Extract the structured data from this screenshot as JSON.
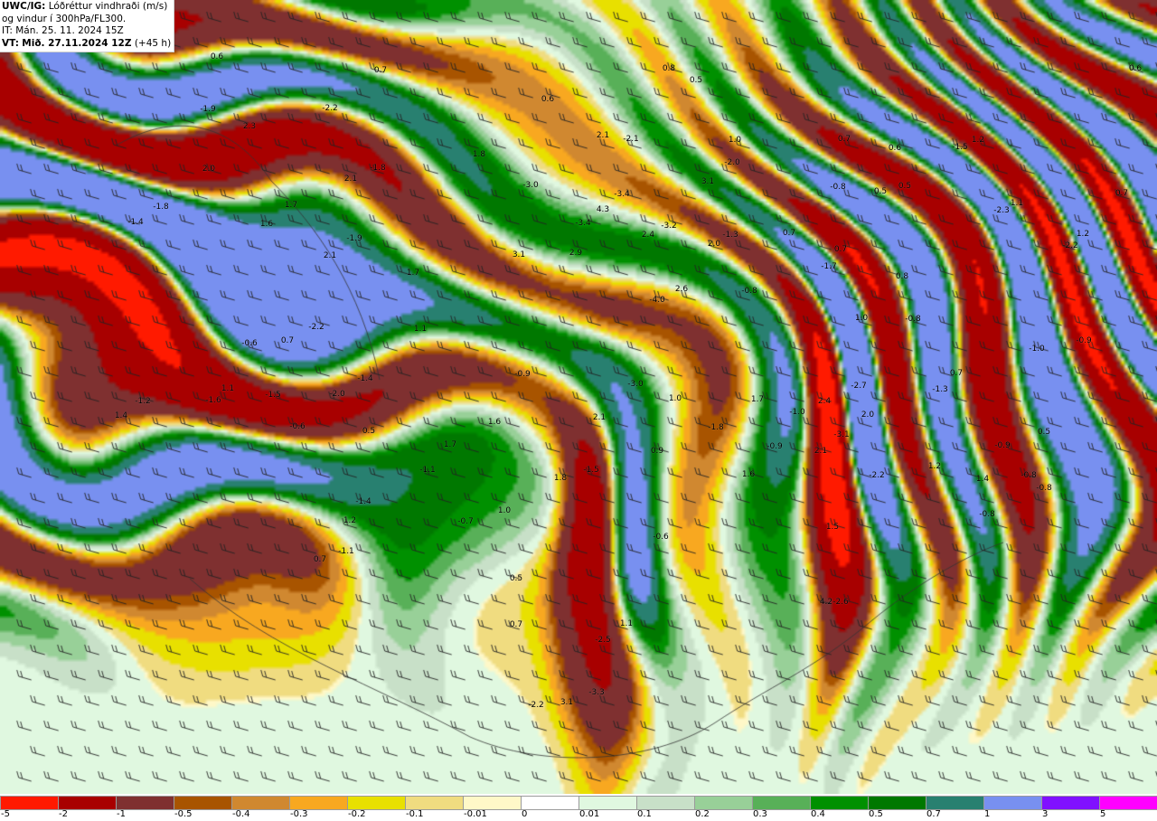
{
  "header": {
    "product_label": "UWC/IG:",
    "title_line1": "Lóðréttur vindhraði (m/s)",
    "title_line2": "og vindur í 300hPa/FL300.",
    "issue_time": "IT: Mán. 25. 11. 2024 15Z",
    "valid_label": "VT:",
    "valid_time": "Mið. 27.11.2024 12Z",
    "lead_time": "(+45 h)"
  },
  "legend": {
    "bins": [
      {
        "label": "-5",
        "color": "#ff1a00"
      },
      {
        "label": "-2",
        "color": "#a80000"
      },
      {
        "label": "-1",
        "color": "#7f3030"
      },
      {
        "label": "-0.5",
        "color": "#a85400"
      },
      {
        "label": "-0.4",
        "color": "#d08830"
      },
      {
        "label": "-0.3",
        "color": "#f8a820"
      },
      {
        "label": "-0.2",
        "color": "#e8e000"
      },
      {
        "label": "-0.1",
        "color": "#f0dc80"
      },
      {
        "label": "-0.01",
        "color": "#fff8c8"
      },
      {
        "label": "0",
        "color": "#ffffff"
      },
      {
        "label": "0.01",
        "color": "#e0f8e0"
      },
      {
        "label": "0.1",
        "color": "#c8e0c8"
      },
      {
        "label": "0.2",
        "color": "#98d098"
      },
      {
        "label": "0.3",
        "color": "#58b058"
      },
      {
        "label": "0.4",
        "color": "#009000"
      },
      {
        "label": "0.5",
        "color": "#007800"
      },
      {
        "label": "0.7",
        "color": "#288070"
      },
      {
        "label": "1",
        "color": "#7890f0"
      },
      {
        "label": "3",
        "color": "#8010ff"
      },
      {
        "label": "5",
        "color": "#ff00ff"
      }
    ]
  },
  "map": {
    "value_labels": [
      "0.6",
      "0.7",
      "0.8",
      "0.5",
      "0.6",
      "-1.9",
      "-2.2",
      "2.3",
      "0.6",
      "2.1",
      "-2.1",
      "1.0",
      "0.7",
      "0.6",
      "-1.5",
      "1.2",
      "2.0",
      "2.1",
      "-1.8",
      "1.8",
      "-3.0",
      "-3.4",
      "4.3",
      "-2.0",
      "3.1",
      "-0.8",
      "0.5",
      "0.5",
      "0.7",
      "-1.4",
      "-1.8",
      "1.6",
      "1.7",
      "-1.9",
      "-3.4",
      "-3.2",
      "2.4",
      "2.0",
      "-1.3",
      "0.7",
      "0.7",
      "-2.3",
      "1.1",
      "1.2",
      "-2.2",
      "2.1",
      "3.1",
      "2.9",
      "1.7",
      "2.6",
      "-4.0",
      "-0.8",
      "-1.7",
      "0.8",
      "1.0",
      "-0.8",
      "-0.9",
      "-1.0",
      "-2.2",
      "1.1",
      "-0.6",
      "0.7",
      "-1.4",
      "-0.9",
      "-3.0",
      "0.7",
      "-1.3",
      "1.1",
      "-1.5",
      "-2.0",
      "-1.2",
      "-1.6",
      "1.0",
      "1.7",
      "2.4",
      "-2.7",
      "1.4",
      "-0.6",
      "0.5",
      "1.6",
      "2.1",
      "-1.0",
      "2.0",
      "-1.8",
      "-3.1",
      "1.7",
      "0.9",
      "-0.9",
      "2.1",
      "-0.9",
      "0.5",
      "-1.1",
      "1.8",
      "-1.5",
      "1.6",
      "-2.2",
      "1.2",
      "1.4",
      "-0.8",
      "-0.8",
      "-1.4",
      "1.0",
      "-0.7",
      "-0.8",
      "1.2",
      "-0.6",
      "1.5",
      "-1.1",
      "0.7",
      "0.5",
      "-2.6",
      "4.2",
      "0.7",
      "1.1",
      "-2.5",
      "-3.3",
      "3.1",
      "-2.2"
    ]
  }
}
